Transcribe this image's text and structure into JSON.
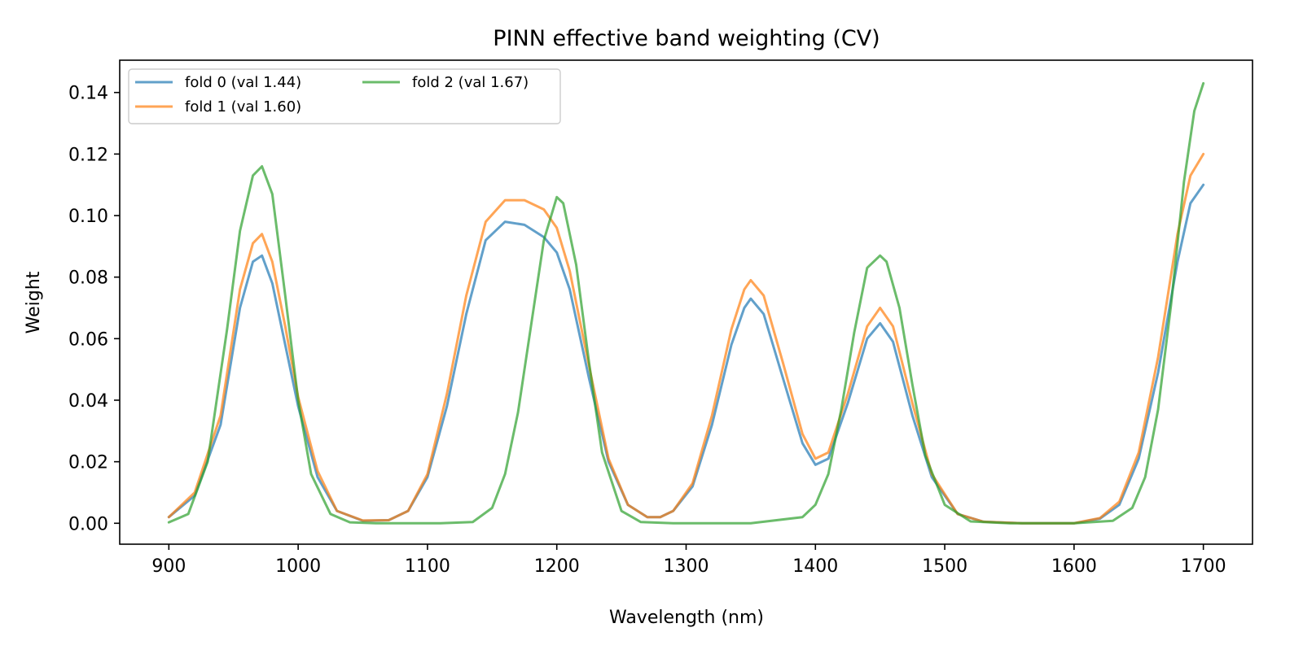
{
  "chart_data": {
    "type": "line",
    "title": "PINN effective band weighting (CV)",
    "xlabel": "Wavelength (nm)",
    "ylabel": "Weight",
    "xlim": [
      862,
      1738
    ],
    "ylim": [
      -0.0068,
      0.1505
    ],
    "xticks": [
      900,
      1000,
      1100,
      1200,
      1300,
      1400,
      1500,
      1600,
      1700
    ],
    "xtick_labels": [
      "900",
      "1000",
      "1100",
      "1200",
      "1300",
      "1400",
      "1500",
      "1600",
      "1700"
    ],
    "yticks": [
      0.0,
      0.02,
      0.04,
      0.06,
      0.08,
      0.1,
      0.12,
      0.14
    ],
    "ytick_labels": [
      "0.00",
      "0.02",
      "0.04",
      "0.06",
      "0.08",
      "0.10",
      "0.12",
      "0.14"
    ],
    "grid": false,
    "legend_position": "top-left",
    "legend_columns": 2,
    "series": [
      {
        "name": "fold 0 (val 1.44)",
        "color": "#1f77b4",
        "x": [
          900,
          920,
          940,
          955,
          965,
          972,
          980,
          990,
          1000,
          1015,
          1030,
          1050,
          1070,
          1085,
          1100,
          1115,
          1130,
          1145,
          1160,
          1175,
          1190,
          1200,
          1210,
          1225,
          1240,
          1255,
          1270,
          1280,
          1290,
          1305,
          1320,
          1335,
          1345,
          1350,
          1360,
          1375,
          1390,
          1400,
          1410,
          1425,
          1440,
          1450,
          1460,
          1475,
          1490,
          1510,
          1530,
          1560,
          1600,
          1620,
          1635,
          1650,
          1665,
          1680,
          1690,
          1700
        ],
        "y": [
          0.002,
          0.009,
          0.032,
          0.07,
          0.085,
          0.087,
          0.078,
          0.058,
          0.038,
          0.015,
          0.004,
          0.0008,
          0.001,
          0.004,
          0.015,
          0.038,
          0.068,
          0.092,
          0.098,
          0.097,
          0.093,
          0.088,
          0.076,
          0.047,
          0.02,
          0.006,
          0.002,
          0.002,
          0.004,
          0.012,
          0.032,
          0.058,
          0.07,
          0.073,
          0.068,
          0.047,
          0.026,
          0.019,
          0.021,
          0.039,
          0.06,
          0.065,
          0.059,
          0.035,
          0.015,
          0.003,
          0.0005,
          0.0,
          0.0,
          0.0015,
          0.006,
          0.021,
          0.049,
          0.085,
          0.104,
          0.11
        ]
      },
      {
        "name": "fold 1 (val 1.60)",
        "color": "#ff7f0e",
        "x": [
          900,
          920,
          940,
          955,
          965,
          972,
          980,
          990,
          1000,
          1015,
          1030,
          1050,
          1070,
          1085,
          1100,
          1115,
          1130,
          1145,
          1160,
          1175,
          1190,
          1200,
          1210,
          1225,
          1240,
          1255,
          1270,
          1280,
          1290,
          1305,
          1320,
          1335,
          1345,
          1350,
          1360,
          1375,
          1390,
          1400,
          1410,
          1425,
          1440,
          1450,
          1460,
          1475,
          1490,
          1510,
          1530,
          1560,
          1600,
          1620,
          1635,
          1650,
          1665,
          1680,
          1690,
          1700
        ],
        "y": [
          0.002,
          0.01,
          0.035,
          0.076,
          0.091,
          0.094,
          0.085,
          0.064,
          0.041,
          0.017,
          0.004,
          0.0009,
          0.001,
          0.004,
          0.016,
          0.042,
          0.074,
          0.098,
          0.105,
          0.105,
          0.102,
          0.096,
          0.082,
          0.051,
          0.021,
          0.006,
          0.002,
          0.002,
          0.004,
          0.013,
          0.035,
          0.063,
          0.076,
          0.079,
          0.074,
          0.052,
          0.029,
          0.021,
          0.023,
          0.042,
          0.064,
          0.07,
          0.064,
          0.039,
          0.016,
          0.003,
          0.0005,
          0.0,
          0.0,
          0.0017,
          0.007,
          0.023,
          0.054,
          0.094,
          0.113,
          0.12
        ]
      },
      {
        "name": "fold 2 (val 1.67)",
        "color": "#2ca02c",
        "x": [
          900,
          915,
          930,
          945,
          955,
          965,
          972,
          980,
          990,
          1000,
          1010,
          1025,
          1040,
          1060,
          1080,
          1110,
          1135,
          1150,
          1160,
          1170,
          1180,
          1190,
          1200,
          1205,
          1215,
          1225,
          1235,
          1250,
          1265,
          1290,
          1350,
          1390,
          1400,
          1410,
          1420,
          1430,
          1440,
          1450,
          1455,
          1465,
          1475,
          1485,
          1500,
          1520,
          1550,
          1600,
          1630,
          1645,
          1655,
          1665,
          1675,
          1685,
          1693,
          1700
        ],
        "y": [
          0.0003,
          0.003,
          0.02,
          0.063,
          0.095,
          0.113,
          0.116,
          0.107,
          0.074,
          0.04,
          0.016,
          0.003,
          0.0003,
          0.0,
          0.0,
          0.0,
          0.0004,
          0.005,
          0.016,
          0.036,
          0.064,
          0.092,
          0.106,
          0.104,
          0.084,
          0.052,
          0.023,
          0.004,
          0.0004,
          0.0,
          0.0,
          0.002,
          0.006,
          0.016,
          0.037,
          0.062,
          0.083,
          0.087,
          0.085,
          0.07,
          0.045,
          0.022,
          0.006,
          0.0006,
          0.0,
          0.0,
          0.0008,
          0.005,
          0.015,
          0.037,
          0.071,
          0.111,
          0.134,
          0.143
        ]
      }
    ]
  }
}
